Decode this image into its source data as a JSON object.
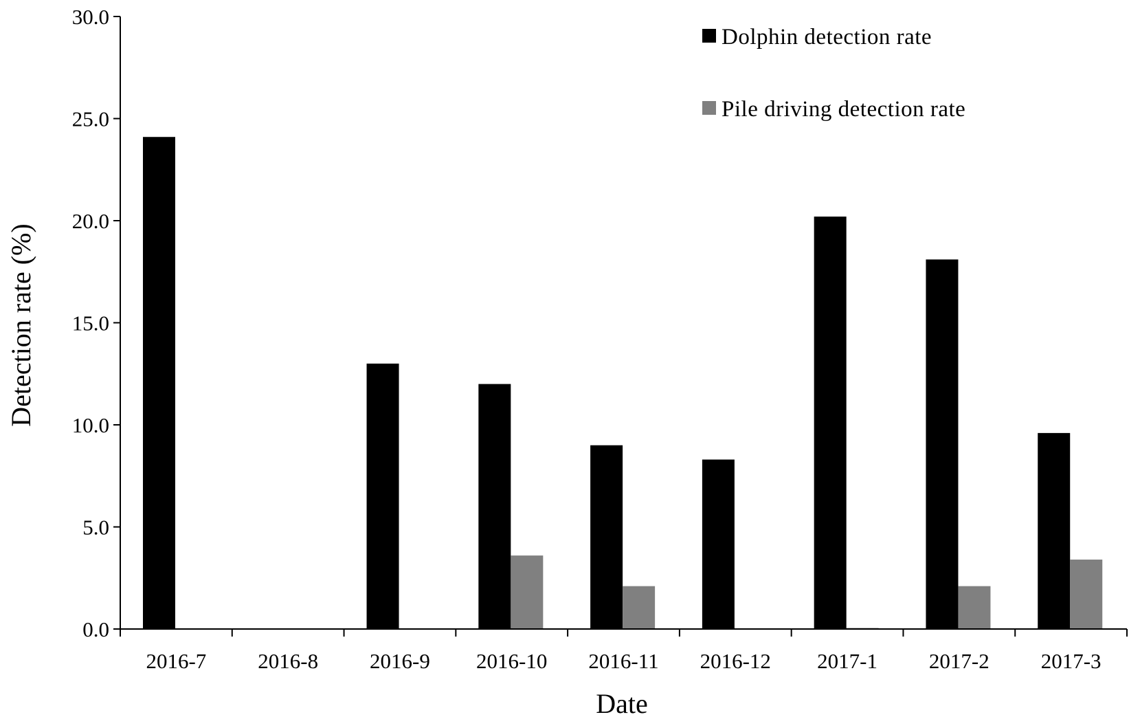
{
  "chart_data": {
    "type": "bar",
    "title": "",
    "xlabel": "Date",
    "ylabel": "Detection rate (%)",
    "categories": [
      "2016-7",
      "2016-8",
      "2016-9",
      "2016-10",
      "2016-11",
      "2016-12",
      "2017-1",
      "2017-2",
      "2017-3"
    ],
    "series": [
      {
        "name": "Dolphin detection rate",
        "color": "#000000",
        "values": [
          24.1,
          0.0,
          13.0,
          12.0,
          9.0,
          8.3,
          20.2,
          18.1,
          9.6
        ]
      },
      {
        "name": "Pile driving detection rate",
        "color": "#808080",
        "values": [
          0.0,
          0.0,
          0.0,
          3.6,
          2.1,
          0.0,
          0.05,
          2.1,
          3.4
        ]
      }
    ],
    "ylim": [
      0,
      30
    ],
    "yticks": [
      "0.0",
      "5.0",
      "10.0",
      "15.0",
      "20.0",
      "25.0",
      "30.0"
    ],
    "grid": false,
    "legend_position": "top-right"
  }
}
